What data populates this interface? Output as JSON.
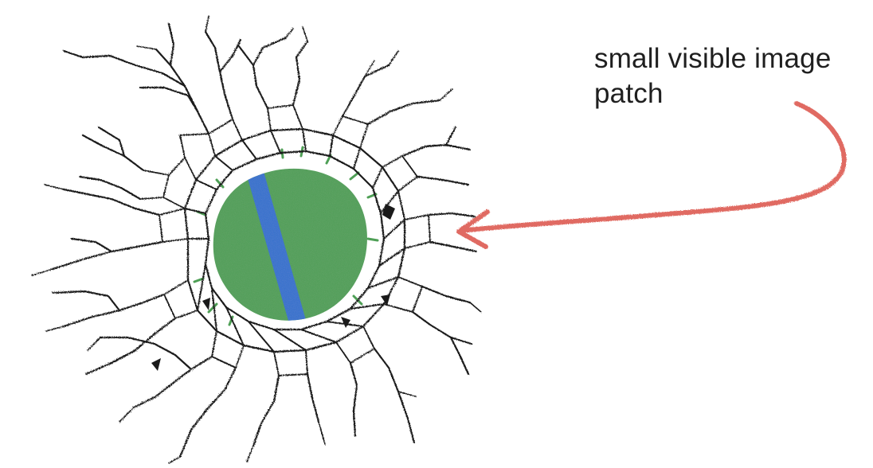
{
  "annotation": {
    "line1": "small visible image",
    "line2": "patch"
  },
  "colors": {
    "patch": "#4e9f55",
    "stripe": "#2f6fce",
    "arrow": "#e06a62",
    "crack": "#1a1a1a",
    "text": "#1f1f1f"
  },
  "icons": [
    "cracked-glass-hole",
    "curved-arrow"
  ]
}
